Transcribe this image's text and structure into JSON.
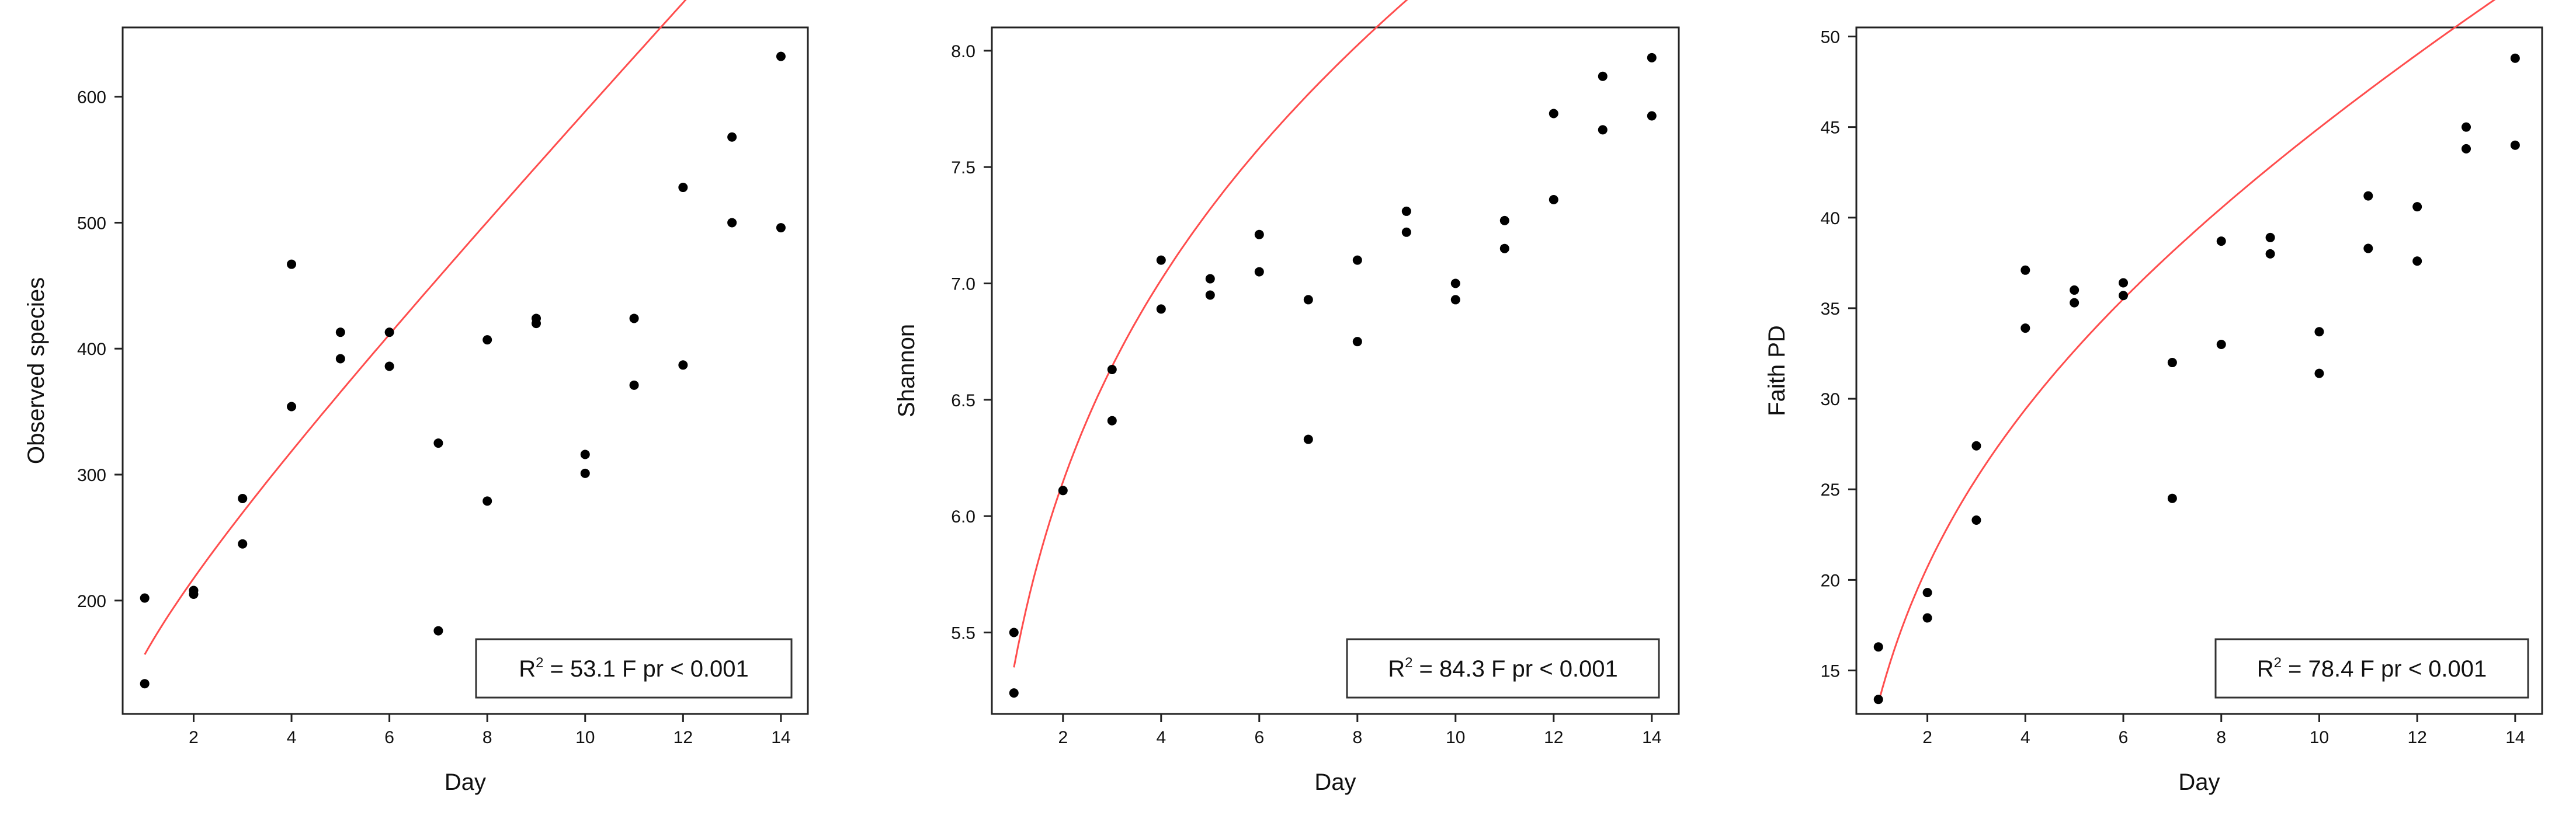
{
  "chart_data": [
    {
      "type": "scatter",
      "xlabel": "Day",
      "ylabel": "Observed  species",
      "xlim": [
        0.55,
        14.55
      ],
      "ylim": [
        110,
        655
      ],
      "xticks": [
        2,
        4,
        6,
        8,
        10,
        12,
        14
      ],
      "yticks": [
        200,
        300,
        400,
        500,
        600
      ],
      "annotation": {
        "prefix": "R",
        "sup": "2",
        "text": " = 53.1  F pr < 0.001"
      },
      "trend": {
        "color": "#ff4d4d",
        "a": 157.2,
        "b": 28.5,
        "c": 40.6,
        "x_start": 1,
        "x_end": 14
      },
      "x": [
        1,
        1,
        2,
        2,
        3,
        3,
        4,
        4,
        5,
        5,
        6,
        6,
        7,
        7,
        8,
        8,
        9,
        9,
        10,
        10,
        11,
        11,
        12,
        12,
        13,
        13,
        14,
        14
      ],
      "y": [
        202,
        134,
        208,
        205,
        281,
        245,
        467,
        354,
        413,
        392,
        413,
        386,
        325,
        176,
        407,
        279,
        424,
        420,
        316,
        301,
        424,
        371,
        528,
        387,
        568,
        500,
        632,
        496
      ]
    },
    {
      "type": "scatter",
      "xlabel": "Day",
      "ylabel": "Shannon",
      "xlim": [
        0.55,
        14.55
      ],
      "ylim": [
        5.15,
        8.1
      ],
      "xticks": [
        2,
        4,
        6,
        8,
        10,
        12,
        14
      ],
      "yticks": [
        5.5,
        6.0,
        6.5,
        7.0,
        7.5,
        8.0
      ],
      "annotation": {
        "prefix": "R",
        "sup": "2",
        "text": " = 84.3  F pr < 0.001"
      },
      "trend": {
        "color": "#ff4d4d",
        "a": 5.35,
        "b": 1.05,
        "c": 0.07,
        "x_start": 1,
        "x_end": 14
      },
      "x": [
        1,
        1,
        2,
        3,
        3,
        4,
        4,
        5,
        5,
        6,
        6,
        7,
        7,
        8,
        8,
        9,
        9,
        10,
        10,
        11,
        11,
        12,
        12,
        13,
        13,
        14,
        14
      ],
      "y": [
        5.5,
        5.24,
        6.11,
        6.63,
        6.41,
        7.1,
        6.89,
        7.02,
        6.95,
        7.21,
        7.05,
        6.93,
        6.33,
        7.1,
        6.75,
        7.31,
        7.22,
        7.0,
        6.93,
        7.27,
        7.15,
        7.73,
        7.36,
        7.89,
        7.66,
        7.97,
        7.72
      ]
    },
    {
      "type": "scatter",
      "xlabel": "Day",
      "ylabel": "Faith PD",
      "xlim": [
        0.55,
        14.55
      ],
      "ylim": [
        12.6,
        50.5
      ],
      "xticks": [
        2,
        4,
        6,
        8,
        10,
        12,
        14
      ],
      "yticks": [
        15,
        20,
        25,
        30,
        35,
        40,
        45,
        50
      ],
      "annotation": {
        "prefix": "R",
        "sup": "2",
        "text": " = 78.4  F pr < 0.001"
      },
      "trend": {
        "color": "#ff4d4d",
        "a": 13.2,
        "b": 9.1,
        "c": 1.2,
        "x_start": 1,
        "x_end": 14
      },
      "x": [
        1,
        1,
        2,
        2,
        3,
        3,
        4,
        4,
        5,
        5,
        6,
        6,
        7,
        7,
        8,
        8,
        9,
        9,
        10,
        10,
        11,
        11,
        12,
        12,
        13,
        13,
        14,
        14
      ],
      "y": [
        16.3,
        13.4,
        19.3,
        17.9,
        27.4,
        23.3,
        37.1,
        33.9,
        36.0,
        35.3,
        36.4,
        35.7,
        32.0,
        24.5,
        38.7,
        33.0,
        38.9,
        38.0,
        33.7,
        31.4,
        41.2,
        38.3,
        40.6,
        37.6,
        45.0,
        43.8,
        48.8,
        44.0
      ]
    }
  ]
}
